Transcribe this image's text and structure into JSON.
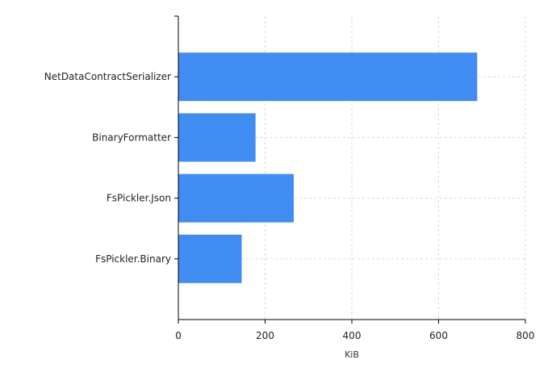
{
  "chart_data": {
    "type": "bar",
    "orientation": "horizontal",
    "categories": [
      "NetDataContractSerializer",
      "BinaryFormatter",
      "FsPickler.Json",
      "FsPickler.Binary"
    ],
    "values": [
      689,
      178,
      266,
      146
    ],
    "xlabel": "KiB",
    "ylabel": "",
    "title": "",
    "xlim": [
      0,
      800
    ],
    "xticks": [
      "0",
      "200",
      "400",
      "600",
      "800"
    ],
    "grid": true,
    "legend": "none",
    "bar_color": "#418CF0"
  }
}
